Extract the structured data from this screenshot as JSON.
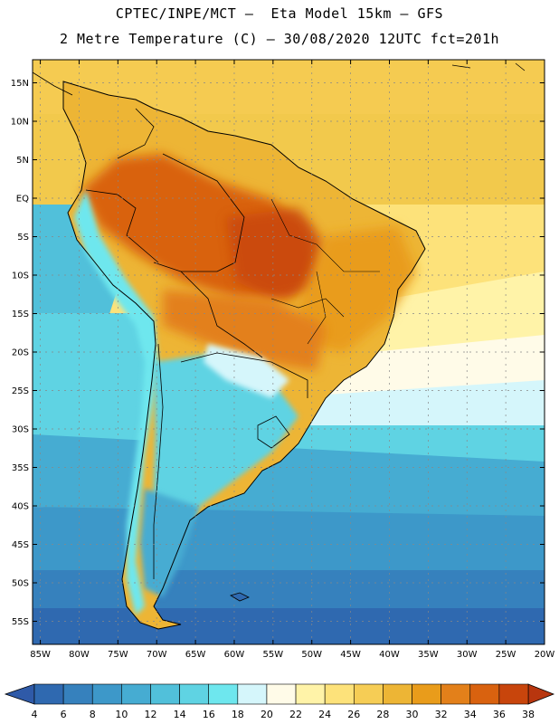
{
  "title": {
    "line1": "CPTEC/INPE/MCT –  Eta Model 15km – GFS",
    "line2": "2 Metre Temperature (C) – 30/08/2020 12UTC fct=201h"
  },
  "map": {
    "lat_range": [
      -58,
      18
    ],
    "lon_range": [
      -86,
      -20
    ],
    "lat_ticks": [
      {
        "value": 15,
        "label": "15N"
      },
      {
        "value": 10,
        "label": "10N"
      },
      {
        "value": 5,
        "label": "5N"
      },
      {
        "value": 0,
        "label": "EQ"
      },
      {
        "value": -5,
        "label": "5S"
      },
      {
        "value": -10,
        "label": "10S"
      },
      {
        "value": -15,
        "label": "15S"
      },
      {
        "value": -20,
        "label": "20S"
      },
      {
        "value": -25,
        "label": "25S"
      },
      {
        "value": -30,
        "label": "30S"
      },
      {
        "value": -35,
        "label": "35S"
      },
      {
        "value": -40,
        "label": "40S"
      },
      {
        "value": -45,
        "label": "45S"
      },
      {
        "value": -50,
        "label": "50S"
      },
      {
        "value": -55,
        "label": "55S"
      }
    ],
    "lon_ticks": [
      {
        "value": -85,
        "label": "85W"
      },
      {
        "value": -80,
        "label": "80W"
      },
      {
        "value": -75,
        "label": "75W"
      },
      {
        "value": -70,
        "label": "70W"
      },
      {
        "value": -65,
        "label": "65W"
      },
      {
        "value": -60,
        "label": "60W"
      },
      {
        "value": -55,
        "label": "55W"
      },
      {
        "value": -50,
        "label": "50W"
      },
      {
        "value": -45,
        "label": "45W"
      },
      {
        "value": -40,
        "label": "40W"
      },
      {
        "value": -35,
        "label": "35W"
      },
      {
        "value": -30,
        "label": "30W"
      },
      {
        "value": -25,
        "label": "25W"
      },
      {
        "value": -20,
        "label": "20W"
      }
    ]
  },
  "colorbar": {
    "labels": [
      "4",
      "6",
      "8",
      "10",
      "12",
      "14",
      "16",
      "18",
      "20",
      "22",
      "24",
      "26",
      "28",
      "30",
      "32",
      "34",
      "36",
      "38"
    ],
    "low_color": "#2f5aa8",
    "high_color": "#b8360e",
    "colors": [
      "#2f69b0",
      "#3681bd",
      "#3d98c9",
      "#46acd2",
      "#51c0da",
      "#5fd3e3",
      "#6ee7ee",
      "#d5f6fb",
      "#fffbe8",
      "#fff3a8",
      "#fde27a",
      "#f6cd55",
      "#edb535",
      "#e99c1b",
      "#e3801a",
      "#d9620f",
      "#c8450c"
    ]
  }
}
